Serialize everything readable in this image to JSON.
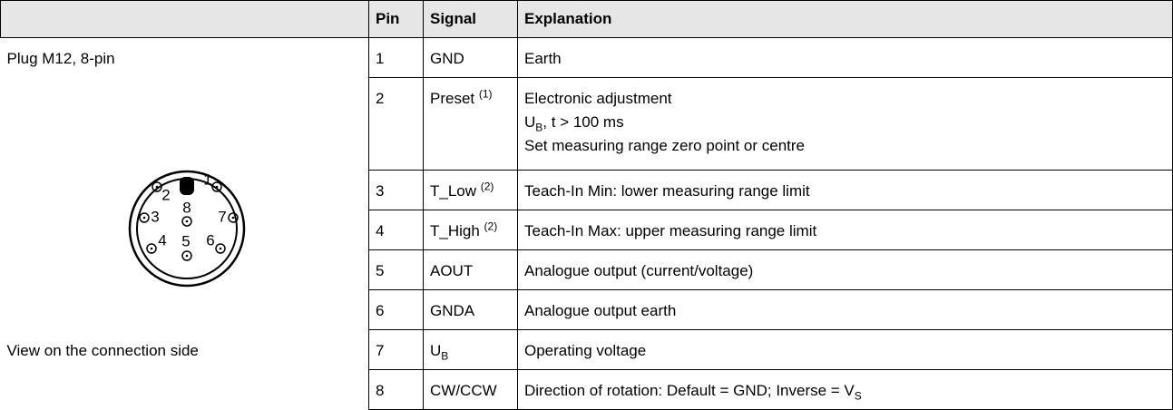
{
  "header": {
    "columns": [
      "Pin",
      "Signal",
      "Explanation"
    ]
  },
  "plug": {
    "title": "Plug M12, 8-pin",
    "caption": "View on the connection side",
    "pins": [
      "1",
      "2",
      "3",
      "4",
      "5",
      "6",
      "7",
      "8"
    ]
  },
  "table": {
    "rows": [
      {
        "pin": 1,
        "signal": [
          "GND"
        ],
        "explanation": [
          [
            "Earth"
          ]
        ]
      },
      {
        "pin": 2,
        "signal": [
          "Preset ",
          {
            "sup": "(1)"
          }
        ],
        "explanation": [
          [
            "Electronic adjustment"
          ],
          [
            "U",
            {
              "sub": "B"
            },
            ", t > 100 ms"
          ],
          [
            "Set measuring range zero point or centre"
          ]
        ]
      },
      {
        "pin": 3,
        "signal": [
          "T_Low ",
          {
            "sup": "(2)"
          }
        ],
        "explanation": [
          [
            "Teach-In Min: lower measuring range limit"
          ]
        ]
      },
      {
        "pin": 4,
        "signal": [
          "T_High ",
          {
            "sup": "(2)"
          }
        ],
        "explanation": [
          [
            "Teach-In Max: upper measuring range limit"
          ]
        ]
      },
      {
        "pin": 5,
        "signal": [
          "AOUT"
        ],
        "explanation": [
          [
            "Analogue output (current/voltage)"
          ]
        ]
      },
      {
        "pin": 6,
        "signal": [
          "GNDA"
        ],
        "explanation": [
          [
            "Analogue output earth"
          ]
        ]
      },
      {
        "pin": 7,
        "signal": [
          "U",
          {
            "sub": "B"
          }
        ],
        "explanation": [
          [
            "Operating voltage"
          ]
        ]
      },
      {
        "pin": 8,
        "signal": [
          "CW/CCW"
        ],
        "explanation": [
          [
            "Direction of rotation: Default = GND; Inverse = V",
            {
              "sub": "S"
            }
          ]
        ]
      }
    ]
  }
}
